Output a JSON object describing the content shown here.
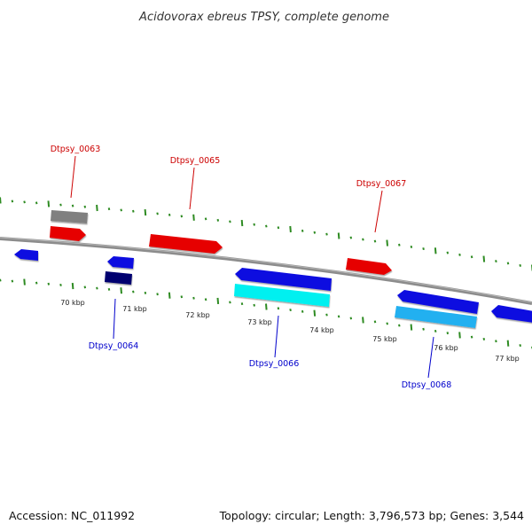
{
  "title": "Acidovorax ebreus TPSY, complete genome",
  "footer": {
    "accession": "Accession: NC_011992",
    "summary": "Topology: circular; Length: 3,796,573 bp; Genes: 3,544"
  },
  "colors": {
    "backbone": "#8c8c8c",
    "tick": "#2e8b22",
    "forward_label": "#cc0000",
    "reverse_label": "#0000cc",
    "gene_red": "#e60000",
    "gene_grey": "#808080",
    "gene_blue": "#1010e0",
    "gene_navy": "#000070",
    "gene_cyan": "#00f0f0",
    "gene_skyblue": "#20b0f0"
  },
  "ruler": {
    "labels": [
      "70 kbp",
      "71 kbp",
      "72 kbp",
      "73 kbp",
      "74 kbp",
      "75 kbp",
      "76 kbp",
      "77 kbp"
    ]
  },
  "gene_labels": {
    "forward": [
      "Dtpsy_0063",
      "Dtpsy_0065",
      "Dtpsy_0067"
    ],
    "reverse": [
      "Dtpsy_0064",
      "Dtpsy_0066",
      "Dtpsy_0068"
    ]
  }
}
